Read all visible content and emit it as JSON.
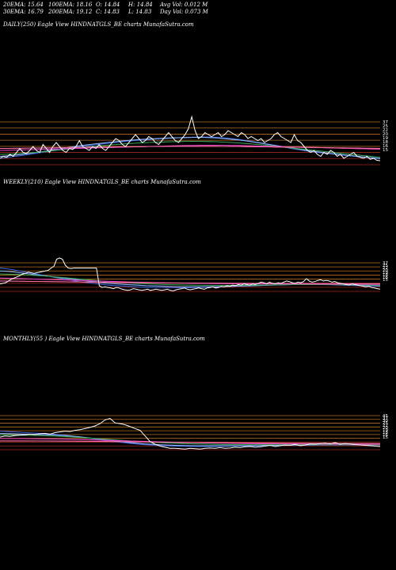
{
  "header": {
    "row1": [
      {
        "label": "20EMA: 15.64"
      },
      {
        "label": "100EMA: 18.16"
      },
      {
        "label": "O: 14.84"
      },
      {
        "label": "H: 14.84"
      },
      {
        "label": "Avg Vol: 0.012  M"
      }
    ],
    "row2": [
      {
        "label": "30EMA: 16.79"
      },
      {
        "label": "200EMA: 19.12"
      },
      {
        "label": "C: 14.83"
      },
      {
        "label": "L: 14.83"
      },
      {
        "label": "Day Vol: 0.073 M"
      }
    ]
  },
  "panels": [
    {
      "title": "DAILY(250) Eagle  View  HINDNATGLS_BE charts MunafaSutra.com"
    },
    {
      "title": "WEEKLY(210) Eagle  View  HINDNATGLS_BE charts MunafaSutra.com"
    },
    {
      "title": "MONTHLY(55                    ) Eagle  View  HINDNATGLS_BE charts MunafaSutra.com"
    }
  ],
  "colors": {
    "background": "#000000",
    "price": "#ffffff",
    "ema_blue": "#3a5fd0",
    "ema_light_blue": "#8fb4ff",
    "ema_green": "#3aa35a",
    "ema_magenta": "#e040c0",
    "ema_pink": "#ff70a8",
    "level_lines": "#c87a2a",
    "level_lines_red": "#b03020"
  },
  "chart_data": [
    {
      "type": "line",
      "name": "daily",
      "y_ticks": [
        "37",
        "25",
        "22",
        "20",
        "19",
        "18",
        "16",
        "15"
      ],
      "levels": [
        37,
        25,
        22,
        20,
        19,
        18,
        16,
        15
      ],
      "ylim": [
        12,
        40
      ],
      "price": [
        16,
        17,
        16.5,
        18,
        17,
        19,
        21,
        19,
        18.5,
        20,
        22,
        20,
        19,
        23,
        21,
        19,
        22,
        24,
        22,
        20,
        19,
        21,
        20.5,
        22,
        25,
        22,
        21,
        20,
        22,
        21,
        23,
        21,
        20,
        22,
        24,
        26,
        25,
        23,
        22,
        24,
        26,
        28,
        26,
        24,
        25,
        27,
        26,
        24,
        23,
        25,
        27,
        29,
        27,
        25,
        24,
        26,
        28,
        31,
        37,
        30,
        26,
        27,
        29,
        28,
        27,
        28,
        29,
        27,
        28,
        30,
        29,
        28,
        27,
        29,
        28,
        26,
        27,
        26,
        25,
        26,
        24,
        25,
        26,
        28,
        29,
        27,
        26,
        25,
        24,
        28,
        25,
        24,
        22,
        20,
        19,
        20,
        18,
        17,
        19,
        18,
        20,
        19,
        17,
        18,
        16,
        17,
        18,
        19,
        17,
        16.5,
        16,
        17,
        15.5,
        16,
        15,
        14.8
      ],
      "emas": [
        {
          "color_key": "ema_blue",
          "values": [
            16,
            16.5,
            17,
            17.5,
            18,
            18.6,
            19.2,
            19.8,
            20.4,
            21,
            21.5,
            22,
            22.5,
            23,
            23.4,
            23.8,
            24.2,
            24.6,
            25,
            25.2,
            25.5,
            25.8,
            26,
            26.2,
            26.4,
            26.6,
            26.7,
            26.8,
            26.8,
            26.6,
            26.3,
            26,
            25.6,
            25,
            24.4,
            23.8,
            23,
            22.4,
            21.8,
            21,
            20.4,
            19.8,
            19.2,
            18.8,
            18.4,
            18,
            17.6,
            17.2,
            16.9,
            16.6,
            16.3,
            16
          ]
        },
        {
          "color_key": "ema_light_blue",
          "values": [
            17,
            17.3,
            17.6,
            18,
            18.5,
            19,
            19.6,
            20.2,
            20.8,
            21.4,
            22,
            22.5,
            23,
            23.4,
            23.8,
            24.2,
            24.6,
            25,
            25.3,
            25.6,
            25.8,
            26,
            26.2,
            26.3,
            26.4,
            26.5,
            26.6,
            26.6,
            26.5,
            26.3,
            26,
            25.7,
            25.3,
            24.8,
            24.3,
            23.7,
            23.1,
            22.5,
            21.9,
            21.3,
            20.7,
            20.1,
            19.6,
            19.1,
            18.6,
            18.2,
            17.8,
            17.4,
            17,
            16.6,
            16.2,
            15.8
          ]
        },
        {
          "color_key": "ema_green",
          "values": [
            18,
            18.1,
            18.3,
            18.5,
            18.8,
            19.1,
            19.4,
            19.8,
            20.2,
            20.6,
            21,
            21.4,
            21.8,
            22.2,
            22.5,
            22.8,
            23.1,
            23.4,
            23.6,
            23.8,
            24,
            24.2,
            24.3,
            24.4,
            24.5,
            24.6,
            24.6,
            24.6,
            24.5,
            24.4,
            24.2,
            24,
            23.8,
            23.5,
            23.2,
            22.9,
            22.5,
            22.1,
            21.7,
            21.3,
            20.9,
            20.5,
            20.1,
            19.7,
            19.3,
            18.9,
            18.5,
            18.1,
            17.7,
            17.3,
            16.9,
            16.5
          ]
        },
        {
          "color_key": "ema_magenta",
          "values": [
            20,
            20.1,
            20.2,
            20.3,
            20.4,
            20.5,
            20.6,
            20.7,
            20.8,
            20.9,
            21,
            21.1,
            21.2,
            21.3,
            21.4,
            21.5,
            21.6,
            21.7,
            21.8,
            21.9,
            22,
            22.1,
            22.2,
            22.3,
            22.4,
            22.5,
            22.5,
            22.6,
            22.6,
            22.6,
            22.6,
            22.5,
            22.5,
            22.4,
            22.3,
            22.2,
            22.1,
            22,
            21.9,
            21.8,
            21.7,
            21.6,
            21.5,
            21.4,
            21.3,
            21.2,
            21.1,
            21,
            20.9,
            20.8,
            20.7,
            20.6
          ]
        },
        {
          "color_key": "ema_pink",
          "values": [
            21,
            21,
            21.1,
            21.1,
            21.2,
            21.2,
            21.3,
            21.3,
            21.4,
            21.4,
            21.5,
            21.5,
            21.6,
            21.6,
            21.7,
            21.7,
            21.8,
            21.8,
            21.9,
            21.9,
            22,
            22,
            22,
            22.1,
            22.1,
            22.1,
            22.1,
            22.1,
            22.1,
            22.1,
            22,
            22,
            22,
            21.9,
            21.9,
            21.8,
            21.8,
            21.7,
            21.7,
            21.6,
            21.6,
            21.5,
            21.5,
            21.4,
            21.4,
            21.3,
            21.3,
            21.2,
            21.2,
            21.1,
            21.1,
            21
          ]
        }
      ]
    },
    {
      "type": "line",
      "name": "weekly",
      "y_ticks": [
        "37",
        "25",
        "22",
        "20",
        "19",
        "18",
        "16",
        "15"
      ],
      "levels": [
        37,
        25,
        22,
        20,
        19,
        18,
        16,
        15
      ],
      "ylim": [
        10,
        80
      ],
      "price": [
        28,
        29,
        30,
        33,
        36,
        38,
        40,
        42,
        45,
        46,
        48,
        47,
        46,
        47,
        48,
        49,
        50,
        51,
        55,
        58,
        70,
        72,
        70,
        60,
        55,
        54,
        55,
        55,
        55,
        55,
        55,
        55,
        55,
        55,
        55,
        25,
        22,
        23,
        22,
        21,
        20,
        22,
        21,
        19,
        18,
        17,
        18,
        20,
        19,
        18,
        17,
        18,
        19,
        17,
        18,
        19,
        18,
        17,
        18,
        19,
        17,
        16,
        18,
        19,
        20,
        21,
        19,
        18,
        19,
        20,
        21,
        20,
        19,
        21,
        22,
        23,
        21,
        22,
        24,
        23,
        25,
        24,
        26,
        25,
        27,
        26,
        28,
        27,
        26,
        28,
        27,
        29,
        31,
        30,
        28,
        31,
        29,
        28,
        30,
        29,
        31,
        33,
        32,
        30,
        29,
        31,
        30,
        32,
        37,
        33,
        31,
        32,
        34,
        35,
        33,
        34,
        33,
        31,
        32,
        30,
        29,
        28,
        27,
        26,
        28,
        27,
        26,
        25,
        24,
        23,
        24,
        22,
        21,
        20,
        19
      ],
      "emas": [
        {
          "color_key": "ema_blue",
          "values": [
            55,
            53,
            50,
            47,
            44,
            41,
            38,
            35,
            32,
            30,
            28,
            26,
            25,
            24,
            23,
            22,
            22,
            21.5,
            21.5,
            21.5,
            22,
            22.5,
            23,
            23.5,
            24,
            24.5,
            25,
            25.5,
            26,
            26.5,
            27,
            27,
            27,
            27,
            26.5,
            26,
            25.5,
            25,
            24.5,
            24
          ]
        },
        {
          "color_key": "ema_light_blue",
          "values": [
            50,
            49,
            47,
            45,
            43,
            41,
            39,
            37,
            35,
            33,
            31,
            29,
            28,
            27,
            26,
            25,
            24.5,
            24,
            23.5,
            23,
            23,
            23,
            23.2,
            23.5,
            24,
            24.5,
            25,
            25.5,
            26,
            26.5,
            27,
            27.2,
            27.3,
            27.2,
            27,
            26.6,
            26.2,
            25.8,
            25.3,
            24.8
          ]
        },
        {
          "color_key": "ema_green",
          "values": [
            45,
            44.5,
            44,
            43,
            42,
            41,
            39.5,
            38,
            36.5,
            35,
            33.5,
            32,
            31,
            30,
            29,
            28.2,
            27.5,
            27,
            26.5,
            26,
            25.8,
            25.6,
            25.5,
            25.5,
            25.6,
            25.8,
            26,
            26.2,
            26.4,
            26.6,
            26.8,
            27,
            27,
            27,
            26.9,
            26.7,
            26.5,
            26.2,
            25.9,
            25.6
          ]
        },
        {
          "color_key": "ema_magenta",
          "values": [
            38,
            37.5,
            37,
            36.5,
            36,
            35.5,
            35,
            34.5,
            34,
            33.5,
            33,
            32.5,
            32,
            31.5,
            31,
            30.6,
            30.2,
            29.8,
            29.5,
            29.2,
            29,
            28.8,
            28.6,
            28.4,
            28.3,
            28.2,
            28.1,
            28,
            28,
            28,
            28,
            28,
            27.9,
            27.8,
            27.7,
            27.6,
            27.5,
            27.4,
            27.3,
            27.2
          ]
        },
        {
          "color_key": "ema_pink",
          "values": [
            33,
            32.8,
            32.6,
            32.4,
            32.2,
            32,
            31.8,
            31.6,
            31.4,
            31.2,
            31,
            30.8,
            30.6,
            30.4,
            30.2,
            30,
            29.8,
            29.7,
            29.6,
            29.5,
            29.4,
            29.3,
            29.2,
            29.1,
            29,
            29,
            28.9,
            28.9,
            28.8,
            28.8,
            28.7,
            28.7,
            28.6,
            28.6,
            28.5,
            28.5,
            28.4,
            28.4,
            28.3,
            28.3
          ]
        }
      ]
    },
    {
      "type": "line",
      "name": "monthly",
      "y_ticks": [
        "45",
        "37",
        "30",
        "25",
        "22",
        "20",
        "19",
        "18",
        "16",
        "15"
      ],
      "levels": [
        45,
        37,
        30,
        25,
        22,
        20,
        19,
        18,
        16,
        15
      ],
      "ylim": [
        10,
        120
      ],
      "price": [
        52,
        55,
        54,
        56,
        57,
        58,
        60,
        59,
        61,
        62,
        60,
        64,
        66,
        68,
        67,
        70,
        72,
        75,
        78,
        82,
        88,
        98,
        102,
        90,
        88,
        85,
        80,
        75,
        70,
        55,
        40,
        33,
        28,
        25,
        22,
        22,
        21,
        20,
        22,
        21,
        20,
        22,
        23,
        22,
        24,
        22,
        23,
        25,
        24,
        26,
        27,
        25,
        26,
        28,
        30,
        27,
        29,
        31,
        30,
        33,
        29,
        31,
        34,
        33,
        35,
        36,
        34,
        37,
        33,
        35,
        34,
        32,
        31,
        30,
        29,
        28,
        27
      ],
      "emas": [
        {
          "color_key": "ema_blue",
          "values": [
            68,
            66,
            64,
            62,
            60,
            57,
            53,
            48,
            43,
            39,
            35,
            32,
            30,
            28.5,
            27.5,
            27,
            27,
            27.5,
            28,
            28.5,
            29,
            29.5,
            30,
            30.5,
            31,
            31.3,
            31.5,
            31.6,
            31.5,
            31.2
          ]
        },
        {
          "color_key": "ema_light_blue",
          "values": [
            62,
            61,
            60,
            59,
            58,
            56,
            53,
            49,
            45,
            41,
            37,
            34,
            32,
            30.5,
            29.5,
            29,
            28.8,
            28.8,
            29,
            29.4,
            29.8,
            30.2,
            30.6,
            31,
            31.2,
            31.4,
            31.5,
            31.5,
            31.4,
            31.2
          ]
        },
        {
          "color_key": "ema_green",
          "values": [
            58,
            57.5,
            57,
            56,
            55,
            53.5,
            51.5,
            49,
            46.5,
            44,
            41.5,
            39.5,
            37.5,
            36,
            34.8,
            33.8,
            33,
            32.4,
            32,
            31.8,
            31.7,
            31.7,
            31.8,
            31.9,
            32,
            32,
            32,
            31.9,
            31.8,
            31.6
          ]
        },
        {
          "color_key": "ema_magenta",
          "values": [
            48,
            48,
            47.8,
            47.5,
            47,
            46.4,
            45.6,
            44.6,
            43.6,
            42.6,
            41.6,
            40.6,
            39.6,
            38.7,
            37.9,
            37.2,
            36.6,
            36,
            35.5,
            35,
            34.6,
            34.3,
            34,
            33.8,
            33.6,
            33.4,
            33.2,
            33,
            32.9,
            32.8
          ]
        },
        {
          "color_key": "ema_pink",
          "values": [
            42,
            42,
            41.9,
            41.8,
            41.6,
            41.4,
            41.1,
            40.8,
            40.4,
            40,
            39.6,
            39.2,
            38.8,
            38.4,
            38,
            37.6,
            37.3,
            37,
            36.7,
            36.4,
            36.1,
            35.9,
            35.7,
            35.5,
            35.3,
            35.1,
            34.9,
            34.8,
            34.7,
            34.6
          ]
        }
      ]
    }
  ]
}
